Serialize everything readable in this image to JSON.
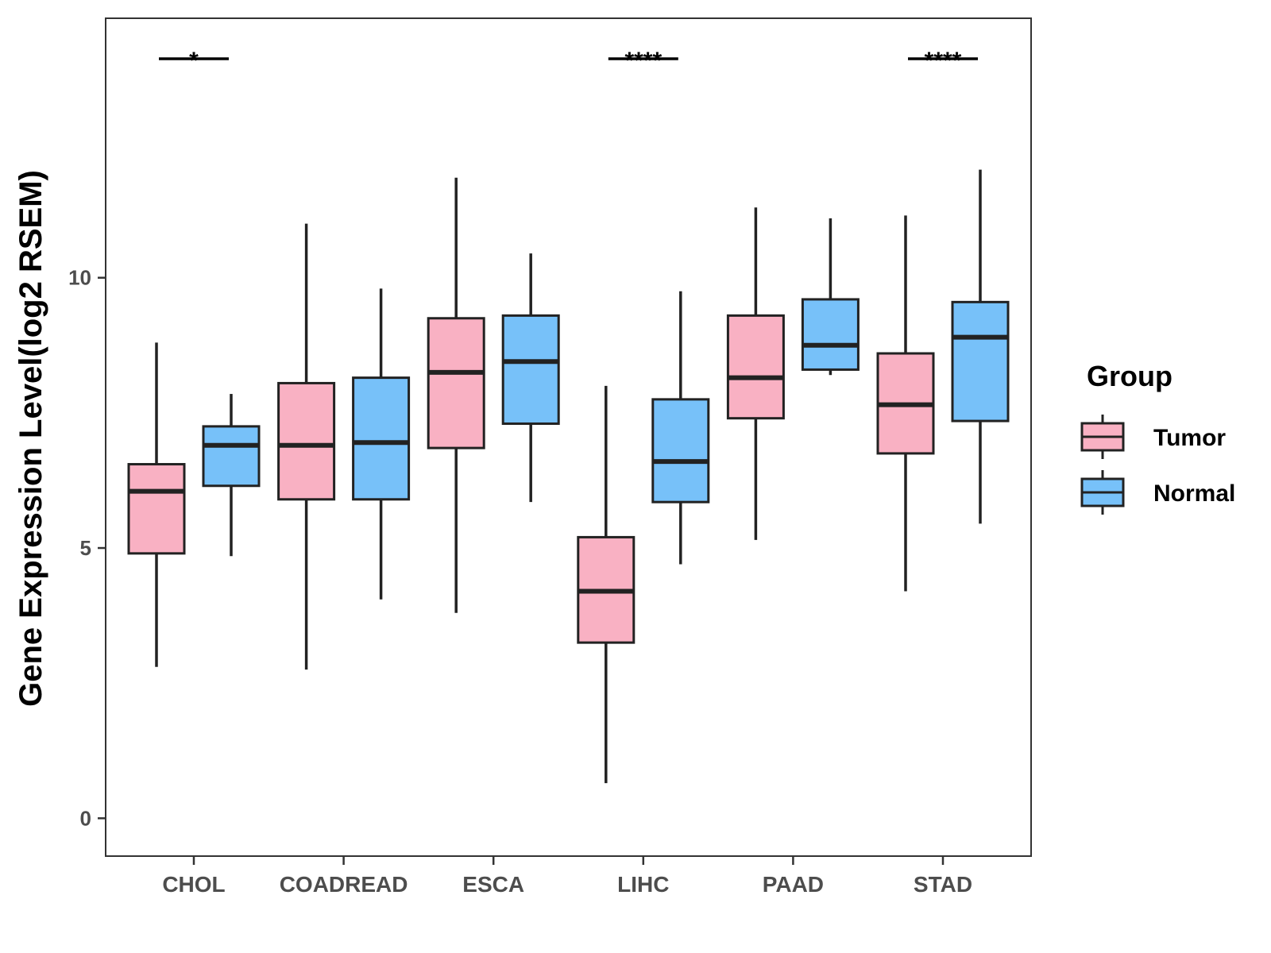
{
  "chart_data": {
    "type": "boxplot",
    "title": "",
    "xlabel": "",
    "ylabel": "Gene Expression Level(log2 RSEM)",
    "ylim": [
      -0.7,
      14.8
    ],
    "yticks": [
      0,
      5,
      10
    ],
    "grid": false,
    "legend": {
      "title": "Group",
      "placement": "right"
    },
    "categories": [
      "CHOL",
      "COADREAD",
      "ESCA",
      "LIHC",
      "PAAD",
      "STAD"
    ],
    "series": [
      {
        "name": "Tumor",
        "color": "#f9b1c3",
        "boxes": [
          {
            "min": 2.8,
            "q1": 4.9,
            "median": 6.05,
            "q3": 6.55,
            "max": 8.8
          },
          {
            "min": 2.75,
            "q1": 5.9,
            "median": 6.9,
            "q3": 8.05,
            "max": 11.0
          },
          {
            "min": 3.8,
            "q1": 6.85,
            "median": 8.25,
            "q3": 9.25,
            "max": 11.85
          },
          {
            "min": 0.65,
            "q1": 3.25,
            "median": 4.2,
            "q3": 5.2,
            "max": 8.0
          },
          {
            "min": 5.15,
            "q1": 7.4,
            "median": 8.15,
            "q3": 9.3,
            "max": 11.3
          },
          {
            "min": 4.2,
            "q1": 6.75,
            "median": 7.65,
            "q3": 8.6,
            "max": 11.15
          }
        ]
      },
      {
        "name": "Normal",
        "color": "#77c1f9",
        "boxes": [
          {
            "min": 4.85,
            "q1": 6.15,
            "median": 6.9,
            "q3": 7.25,
            "max": 7.85
          },
          {
            "min": 4.05,
            "q1": 5.9,
            "median": 6.95,
            "q3": 8.15,
            "max": 9.8
          },
          {
            "min": 5.85,
            "q1": 7.3,
            "median": 8.45,
            "q3": 9.3,
            "max": 10.45
          },
          {
            "min": 4.7,
            "q1": 5.85,
            "median": 6.6,
            "q3": 7.75,
            "max": 9.75
          },
          {
            "min": 8.2,
            "q1": 8.3,
            "median": 8.75,
            "q3": 9.6,
            "max": 11.1
          },
          {
            "min": 5.45,
            "q1": 7.35,
            "median": 8.9,
            "q3": 9.55,
            "max": 12.0
          }
        ]
      }
    ],
    "annotations": [
      {
        "category": "CHOL",
        "label": "*"
      },
      {
        "category": "LIHC",
        "label": "****"
      },
      {
        "category": "STAD",
        "label": "****"
      }
    ]
  }
}
